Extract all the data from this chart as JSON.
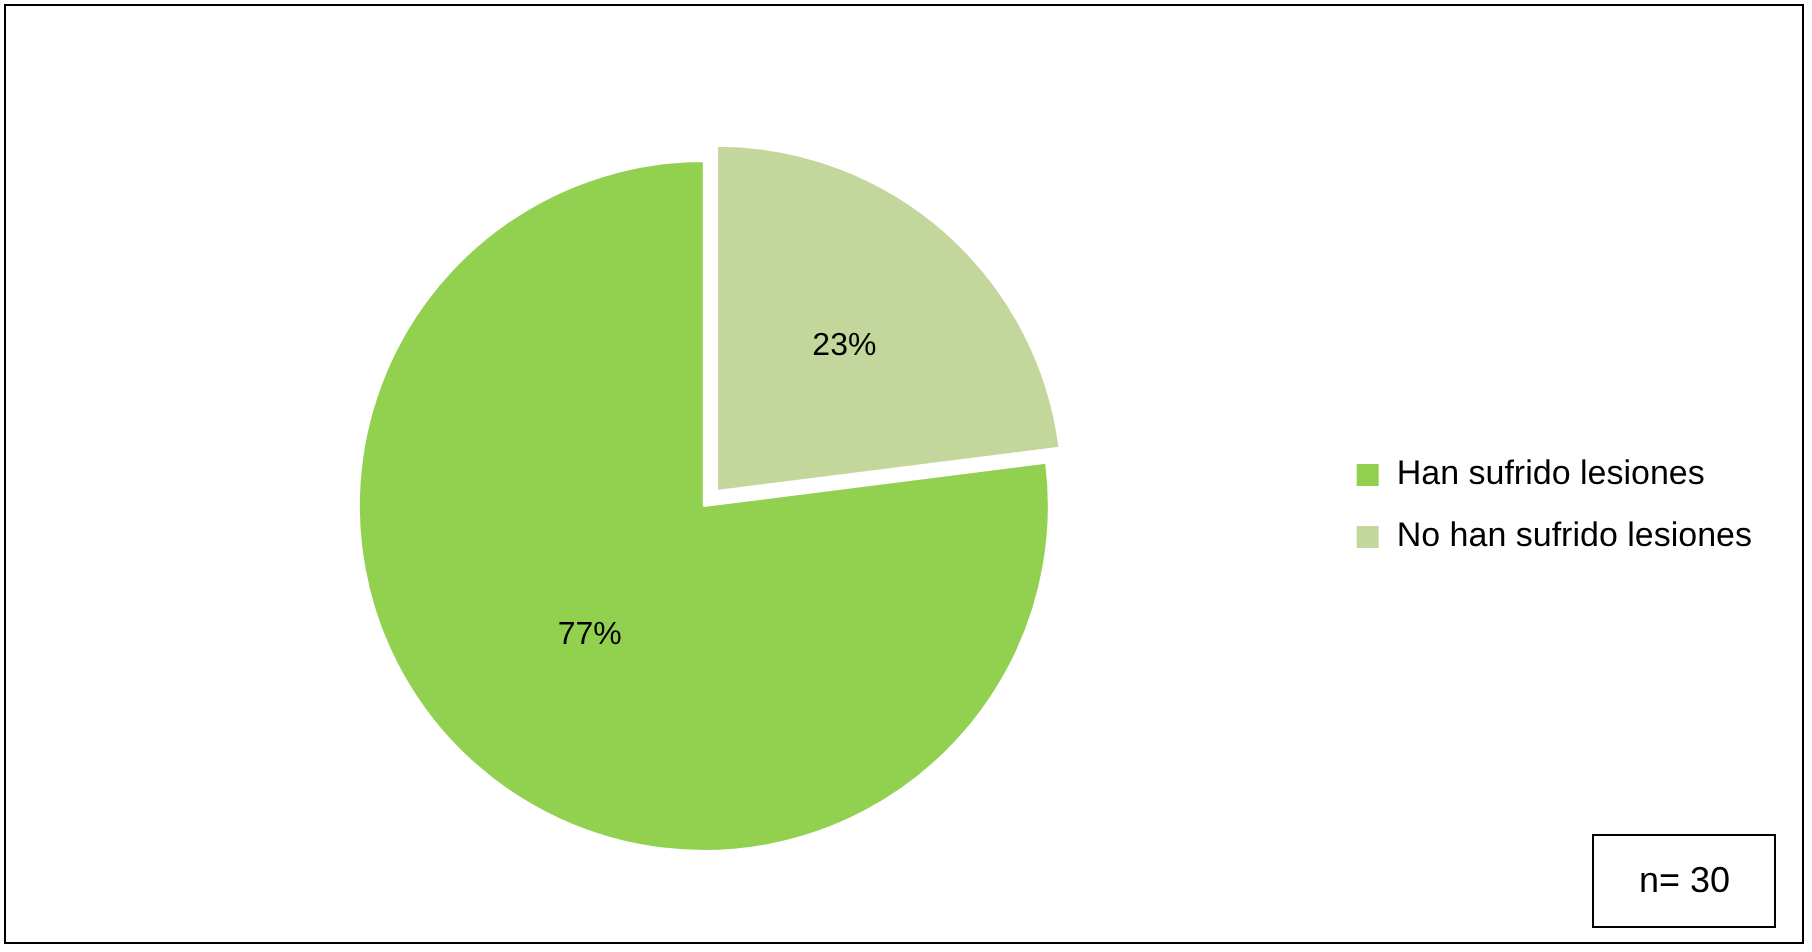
{
  "chart_data": {
    "type": "pie",
    "categories": [
      "Han sufrido lesiones",
      "No han sufrido lesiones"
    ],
    "values": [
      77,
      23
    ],
    "colors": [
      "#92d050",
      "#c3d69b"
    ],
    "value_labels": [
      "77%",
      "23%"
    ],
    "legend": "right",
    "annotations": [
      "n= 30"
    ]
  }
}
